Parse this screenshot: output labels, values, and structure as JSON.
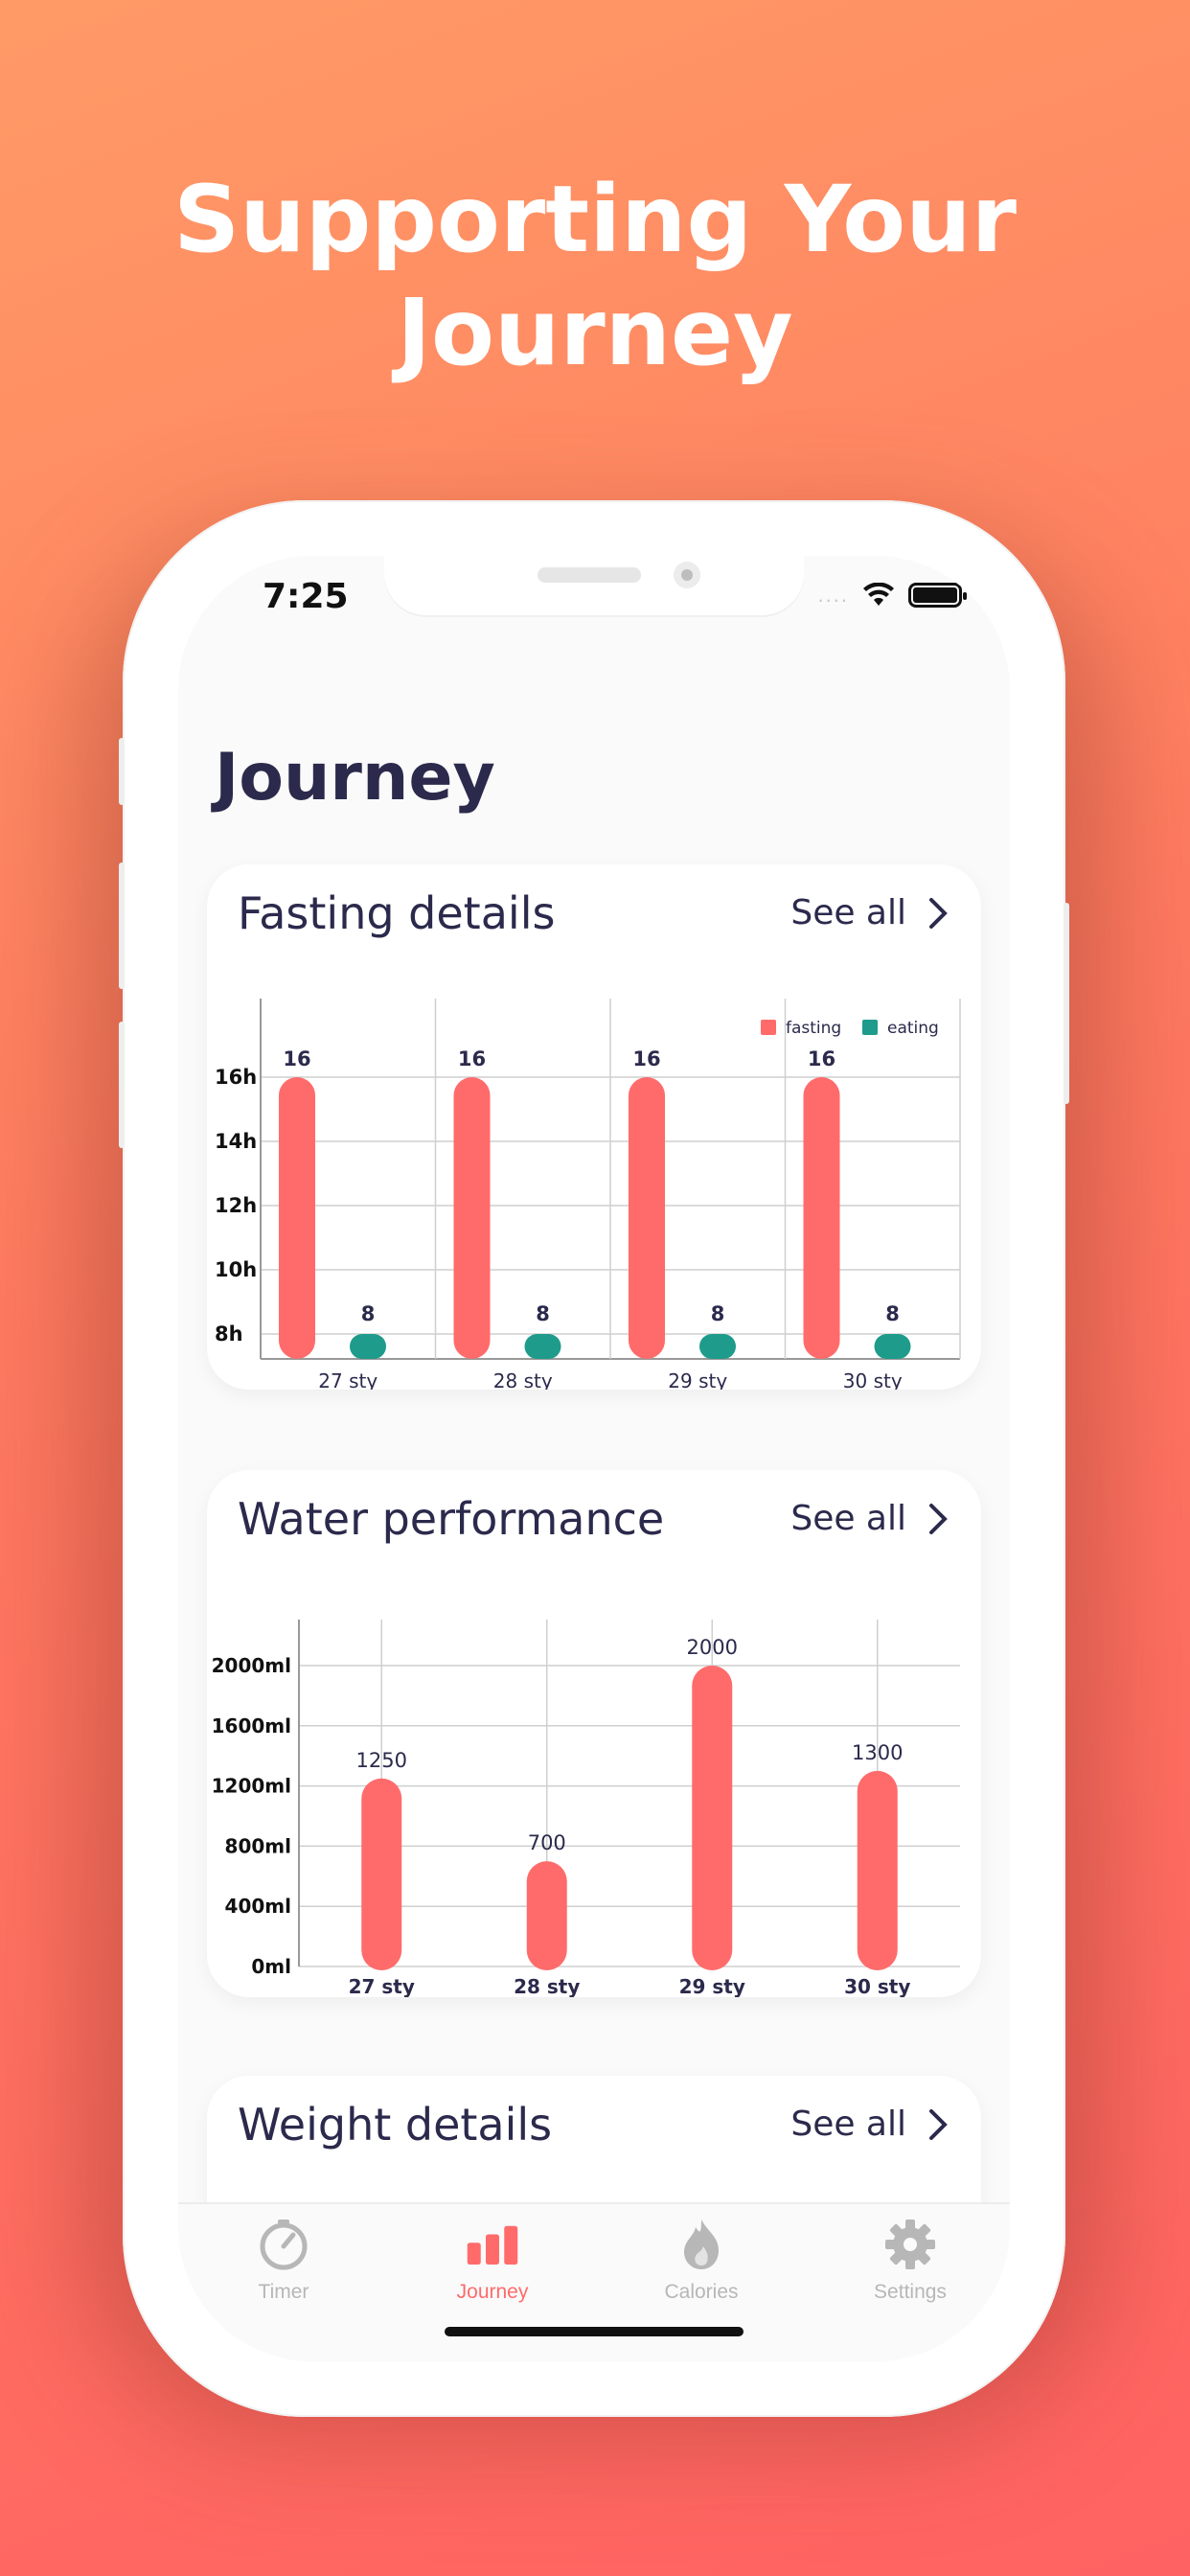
{
  "marketing": {
    "line1": "Supporting Your",
    "line2": "Journey"
  },
  "status_bar": {
    "time": "7:25",
    "signal": "....",
    "wifi_icon": "wifi-icon",
    "battery_icon": "battery-icon"
  },
  "page": {
    "title": "Journey"
  },
  "cards": {
    "fasting": {
      "title": "Fasting details",
      "see_all": "See all"
    },
    "water": {
      "title": "Water performance",
      "see_all": "See all"
    },
    "weight": {
      "title": "Weight details",
      "see_all": "See all"
    }
  },
  "colors": {
    "accent": "#ff6b6b",
    "eating": "#1e9b8a",
    "text": "#2b2a4c",
    "grid": "#cfcfcf"
  },
  "chart_data": [
    {
      "type": "bar",
      "title": "Fasting details",
      "categories": [
        "27 sty",
        "28 sty",
        "29 sty",
        "30 sty"
      ],
      "series": [
        {
          "name": "fasting",
          "values": [
            16,
            16,
            16,
            16
          ],
          "data_labels": [
            "16",
            "16",
            "16",
            "16"
          ]
        },
        {
          "name": "eating",
          "values": [
            8,
            8,
            8,
            8
          ],
          "data_labels": [
            "8",
            "8",
            "8",
            "8"
          ]
        }
      ],
      "y_ticks": [
        "8h",
        "10h",
        "12h",
        "14h",
        "16h"
      ],
      "ylim": [
        7.6,
        16
      ],
      "legend": "top-right",
      "grid": true
    },
    {
      "type": "bar",
      "title": "Water performance",
      "categories": [
        "27 sty",
        "28 sty",
        "29 sty",
        "30 sty"
      ],
      "series": [
        {
          "values": [
            1250,
            700,
            2000,
            1300
          ],
          "data_labels": [
            "1250",
            "700",
            "2000",
            "1300"
          ]
        }
      ],
      "y_ticks": [
        "0ml",
        "400ml",
        "800ml",
        "1200ml",
        "1600ml",
        "2000ml"
      ],
      "ylim": [
        0,
        2000
      ],
      "grid": true
    }
  ],
  "tabbar": {
    "tabs": [
      {
        "label": "Timer",
        "icon": "timer-icon"
      },
      {
        "label": "Journey",
        "icon": "bar-chart-icon",
        "active": true
      },
      {
        "label": "Calories",
        "icon": "flame-icon"
      },
      {
        "label": "Settings",
        "icon": "gear-icon"
      }
    ]
  }
}
